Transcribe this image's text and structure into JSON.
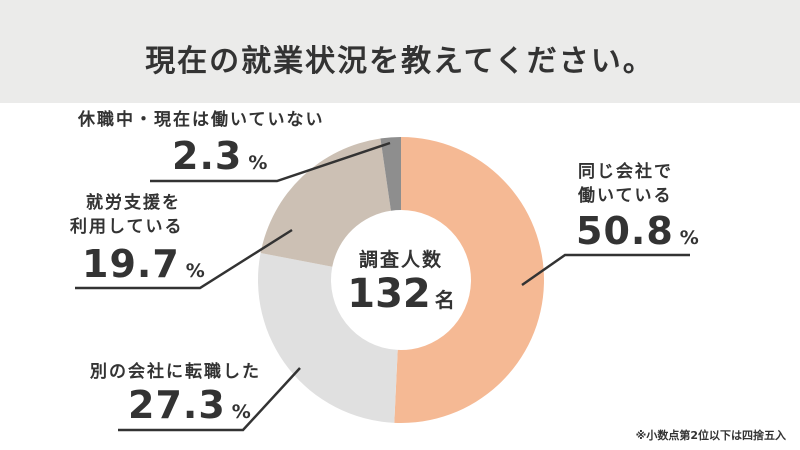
{
  "header": {
    "title": "現在の就業状況を教えてください。"
  },
  "center": {
    "label": "調査人数",
    "count": "132",
    "unit": "名"
  },
  "note": "※小数点第2位以下は四捨五入",
  "chart_data": {
    "type": "pie",
    "donut": true,
    "legend": "none",
    "categories": [
      "同じ会社で働いている",
      "別の会社に転職した",
      "就労支援を利用している",
      "休職中・現在は働いていない"
    ],
    "values": [
      50.8,
      27.3,
      19.7,
      2.3
    ],
    "colors": [
      "#f5b994",
      "#e0e0e0",
      "#ccc0b4",
      "#8e8e8e"
    ],
    "labels": [
      {
        "line1": "同じ会社で",
        "line2": "働いている",
        "value": "50.8",
        "unit": "%"
      },
      {
        "line1": "別の会社に転職した",
        "line2": "",
        "value": "27.3",
        "unit": "%"
      },
      {
        "line1": "就労支援を",
        "line2": "利用している",
        "value": "19.7",
        "unit": "%"
      },
      {
        "line1": "休職中・現在は働いていない",
        "line2": "",
        "value": "2.3",
        "unit": "%"
      }
    ]
  }
}
